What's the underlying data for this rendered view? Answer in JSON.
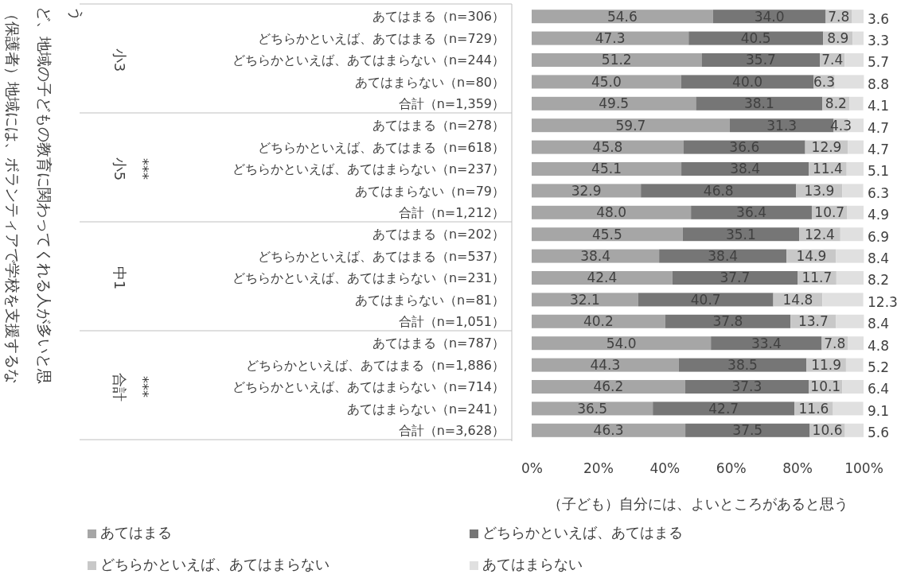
{
  "chart_data": {
    "type": "bar",
    "orientation": "horizontal",
    "stacked": true,
    "legend": "bottom",
    "xlabel": "（子ども）自分には、よいところがあると思う",
    "annotations": [
      "（保護者）地域には、ボランティアで学校を支援するなど、地域の子どもの教育に関わってくれる人が多いと思う",
      "小3",
      "小5",
      "***",
      "中1",
      "合計",
      "***"
    ],
    "categories": [
      "あてはまる（n=306）",
      "どちらかといえば、あてはまる（n=729）",
      "どちらかといえば、あてはまらない（n=244）",
      "あてはまらない（n=80）",
      "合計（n=1,359）",
      "あてはまる（n=278）",
      "どちらかといえば、あてはまる（n=618）",
      "どちらかといえば、あてはまらない（n=237）",
      "あてはまらない（n=79）",
      "合計（n=1,212）",
      "あてはまる（n=202）",
      "どちらかといえば、あてはまる（n=537）",
      "どちらかといえば、あてはまらない（n=231）",
      "あてはまらない（n=81）",
      "合計（n=1,051）",
      "あてはまる（n=787）",
      "どちらかといえば、あてはまる（n=1,886）",
      "どちらかといえば、あてはまらない（n=714）",
      "あてはまらない（n=241）",
      "合計（n=3,628）"
    ],
    "xlim": [
      0,
      100
    ],
    "xticks": [
      {
        "value": 0,
        "label": "0%"
      },
      {
        "value": 20,
        "label": "20%"
      },
      {
        "value": 40,
        "label": "40%"
      },
      {
        "value": 60,
        "label": "60%"
      },
      {
        "value": 80,
        "label": "80%"
      },
      {
        "value": 100,
        "label": "100%"
      }
    ],
    "series": [
      {
        "name": "あてはまる",
        "color": "#a6a6a6",
        "values": [
          54.6,
          47.3,
          51.2,
          45.0,
          49.5,
          59.7,
          45.8,
          45.1,
          32.9,
          48.0,
          45.5,
          38.4,
          42.4,
          32.1,
          40.2,
          54.0,
          44.3,
          46.2,
          36.5,
          46.3
        ],
        "value_labels": [
          "54.6",
          "47.3",
          "51.2",
          "45.0",
          "49.5",
          "59.7",
          "45.8",
          "45.1",
          "32.9",
          "48.0",
          "45.5",
          "38.4",
          "42.4",
          "32.1",
          "40.2",
          "54.0",
          "44.3",
          "46.2",
          "36.5",
          "46.3"
        ]
      },
      {
        "name": "どちらかといえば、あてはまる",
        "color": "#767676",
        "values": [
          34.0,
          40.5,
          35.7,
          40.0,
          38.1,
          31.3,
          36.6,
          38.4,
          46.8,
          36.4,
          35.1,
          38.4,
          37.7,
          40.7,
          37.8,
          33.4,
          38.5,
          37.3,
          42.7,
          37.5
        ],
        "value_labels": [
          "34.0",
          "40.5",
          "35.7",
          "40.0",
          "38.1",
          "31.3",
          "36.6",
          "38.4",
          "46.8",
          "36.4",
          "35.1",
          "38.4",
          "37.7",
          "40.7",
          "37.8",
          "33.4",
          "38.5",
          "37.3",
          "42.7",
          "37.5"
        ]
      },
      {
        "name": "どちらかといえば、あてはまらない",
        "color": "#c8c8c8",
        "values": [
          7.8,
          8.9,
          7.4,
          6.3,
          8.2,
          4.3,
          12.9,
          11.4,
          13.9,
          10.7,
          12.4,
          14.9,
          11.7,
          14.8,
          13.7,
          7.8,
          11.9,
          10.1,
          11.6,
          10.6
        ],
        "value_labels": [
          "7.8",
          "8.9",
          "7.4",
          "6.3",
          "8.2",
          "4.3",
          "12.9",
          "11.4",
          "13.9",
          "10.7",
          "12.4",
          "14.9",
          "11.7",
          "14.8",
          "13.7",
          "7.8",
          "11.9",
          "10.1",
          "11.6",
          "10.6"
        ]
      },
      {
        "name": "あてはまらない",
        "color": "#e0e0e0",
        "values": [
          3.6,
          3.3,
          5.7,
          8.8,
          4.1,
          4.7,
          4.7,
          5.1,
          6.3,
          4.9,
          6.9,
          8.4,
          8.2,
          12.3,
          8.4,
          4.8,
          5.2,
          6.4,
          9.1,
          5.6
        ],
        "value_labels": [
          "3.6",
          "3.3",
          "5.7",
          "8.8",
          "4.1",
          "4.7",
          "4.7",
          "5.1",
          "6.3",
          "4.9",
          "6.9",
          "8.4",
          "8.2",
          "12.3",
          "8.4",
          "4.8",
          "5.2",
          "6.4",
          "9.1",
          "5.6"
        ]
      }
    ]
  }
}
